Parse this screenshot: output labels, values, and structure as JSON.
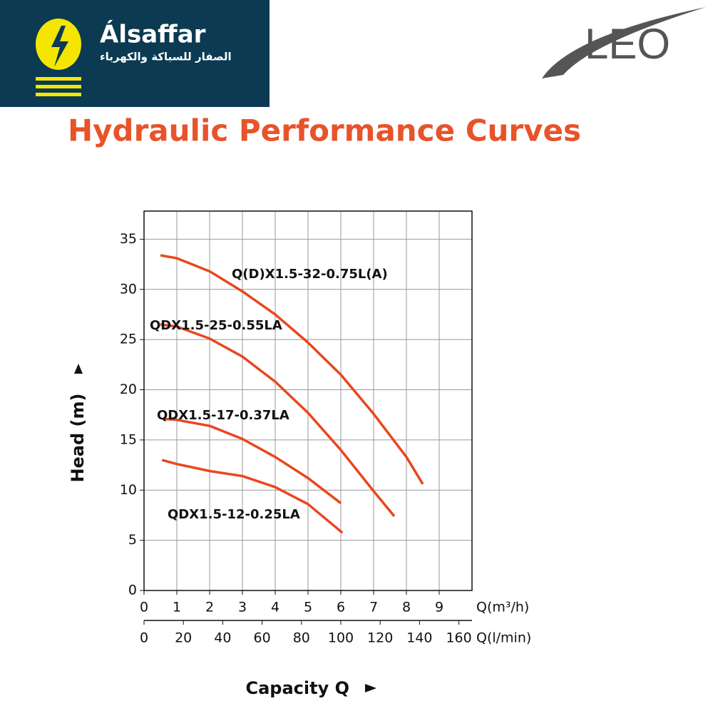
{
  "header": {
    "brand": "Álsaffar",
    "brand_arabic": "الصفار للسباكة والكهرباء",
    "partner": "LEO"
  },
  "chart_data": {
    "type": "line",
    "title": "Hydraulic Performance Curves",
    "y_label": "Head (m)",
    "x_label": "Capacity Q",
    "x_unit": "Q(m³/h)",
    "x2_unit": "Q(l/min)",
    "xlim": [
      0,
      10
    ],
    "xticks": [
      0,
      1,
      2,
      3,
      4,
      5,
      6,
      7,
      8,
      9
    ],
    "x2lim": [
      0,
      166.67
    ],
    "x2ticks": [
      0,
      20,
      40,
      60,
      80,
      100,
      120,
      140,
      160
    ],
    "ylim": [
      0,
      37.8
    ],
    "yticks": [
      0,
      5,
      10,
      15,
      20,
      25,
      30,
      35
    ],
    "grid": true,
    "series": [
      {
        "name": "Q(D)X1.5-32-0.75L(A)",
        "color": "#e8471e",
        "x": [
          0.5,
          1,
          2,
          3,
          4,
          5,
          6,
          7,
          8,
          8.5
        ],
        "values": [
          33.4,
          33.1,
          31.8,
          29.8,
          27.5,
          24.7,
          21.5,
          17.6,
          13.3,
          10.6
        ]
      },
      {
        "name": "QDX1.5-25-0.55LA",
        "color": "#e8471e",
        "x": [
          0.5,
          1,
          2,
          3,
          4,
          5,
          6,
          7,
          7.63
        ],
        "values": [
          26.5,
          26.3,
          25.1,
          23.3,
          20.8,
          17.7,
          14,
          9.9,
          7.4
        ]
      },
      {
        "name": "QDX1.5-17-0.37LA",
        "color": "#e8471e",
        "x": [
          0.6,
          1,
          2,
          3,
          4,
          5,
          6
        ],
        "values": [
          17.1,
          17,
          16.4,
          15.1,
          13.3,
          11.2,
          8.7
        ]
      },
      {
        "name": "QDX1.5-12-0.25LA",
        "color": "#e8471e",
        "x": [
          0.55,
          1,
          2,
          3,
          4,
          5,
          6.05
        ],
        "values": [
          13,
          12.6,
          11.9,
          11.4,
          10.3,
          8.6,
          5.75
        ]
      }
    ]
  }
}
